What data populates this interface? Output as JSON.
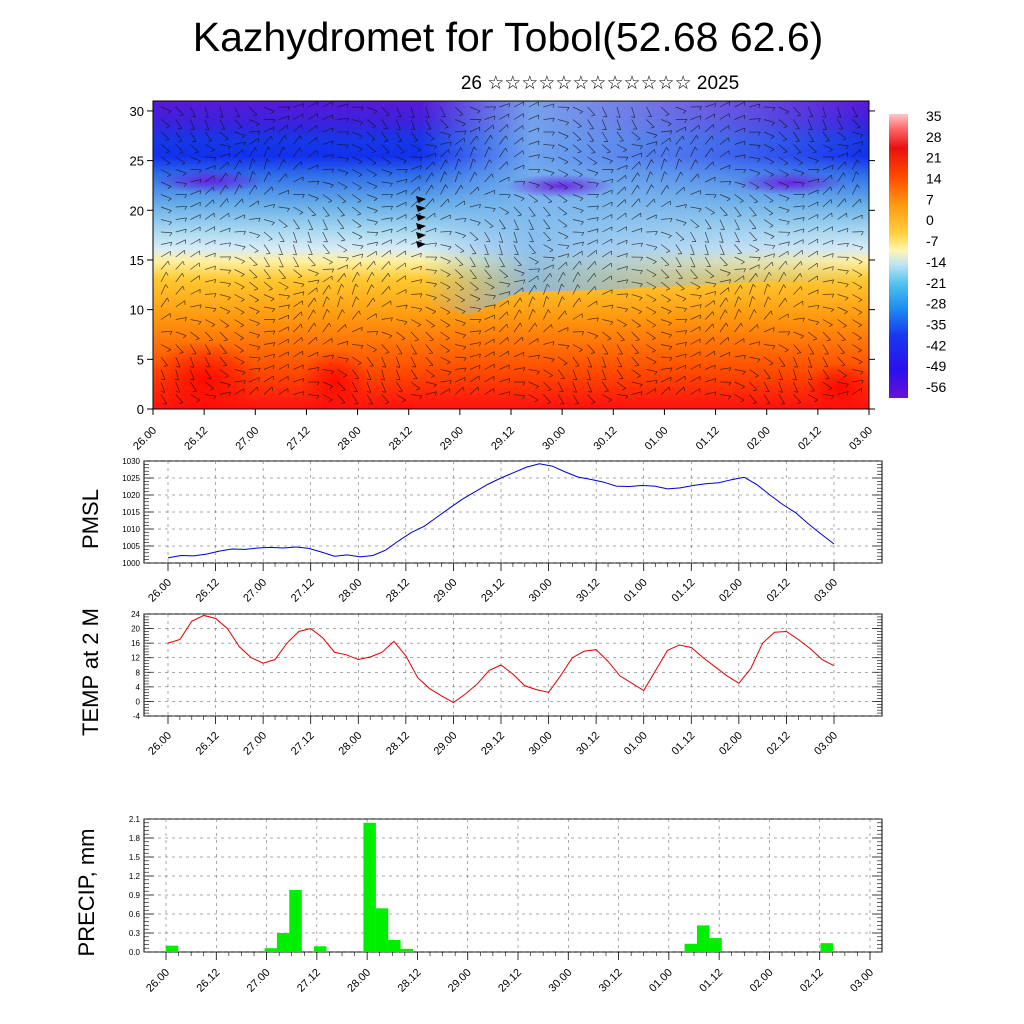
{
  "title": "Kazhydromet for Tobol(52.68 62.6)",
  "subtitle": "26 ☆☆☆☆☆☆☆☆☆☆☆☆ 2025",
  "x_tick_labels": [
    "26.00",
    "26.12",
    "27.00",
    "27.12",
    "28.00",
    "28.12",
    "29.00",
    "29.12",
    "30.00",
    "30.12",
    "01.00",
    "01.12",
    "02.00",
    "02.12",
    "03.00"
  ],
  "colors": {
    "pmsl_line": "#0000cc",
    "temp_line": "#dd0000",
    "precip_bar": "#00ee00"
  },
  "chart_data": [
    {
      "type": "heatmap",
      "title": "Kazhydromet for Tobol(52.68 62.6)",
      "y_ticks": [
        0,
        5,
        10,
        15,
        20,
        25,
        30
      ],
      "ylim": [
        0,
        31
      ],
      "colorbar_labels": [
        "35",
        "28",
        "21",
        "14",
        "7",
        "0",
        "-7",
        "-14",
        "-21",
        "-28",
        "-35",
        "-42",
        "-49",
        "-56"
      ],
      "colorbar_range": [
        -60,
        38
      ],
      "overlay": "wind barbs"
    },
    {
      "type": "line",
      "ylabel": "PMSL",
      "ylim": [
        1000,
        1030
      ],
      "y_ticks": [
        "1000",
        "1005",
        "1010",
        "1015",
        "1020",
        "1025",
        "1030"
      ],
      "values": [
        1001.5,
        1002.2,
        1002.1,
        1002.6,
        1003.5,
        1004.1,
        1004.0,
        1004.4,
        1004.6,
        1004.4,
        1004.7,
        1004.3,
        1003.2,
        1002.0,
        1002.4,
        1001.8,
        1002.2,
        1003.8,
        1006.5,
        1009.0,
        1010.8,
        1013.5,
        1016.2,
        1018.8,
        1021.0,
        1023.2,
        1025.0,
        1026.6,
        1028.2,
        1029.2,
        1028.5,
        1026.8,
        1025.3,
        1024.6,
        1023.8,
        1022.6,
        1022.5,
        1022.8,
        1022.6,
        1021.8,
        1022.1,
        1022.8,
        1023.3,
        1023.6,
        1024.5,
        1025.2,
        1023.0,
        1020.0,
        1017.2,
        1014.8,
        1011.5,
        1008.5,
        1005.6
      ]
    },
    {
      "type": "line",
      "ylabel": "TEMP at 2 M",
      "ylim": [
        -4,
        24
      ],
      "y_ticks": [
        "-4",
        "0",
        "4",
        "8",
        "12",
        "16",
        "20",
        "24"
      ],
      "values": [
        16.0,
        17.0,
        22.0,
        23.6,
        22.8,
        20.0,
        15.0,
        12.0,
        10.5,
        11.5,
        16.0,
        19.2,
        20.0,
        17.5,
        13.5,
        12.8,
        11.5,
        12.2,
        13.5,
        16.5,
        12.5,
        6.5,
        3.5,
        1.5,
        -0.3,
        2.0,
        4.8,
        8.5,
        10.0,
        7.5,
        4.3,
        3.2,
        2.5,
        7.0,
        12.0,
        13.8,
        14.2,
        11.0,
        7.0,
        5.0,
        3.0,
        8.5,
        14.0,
        15.5,
        14.8,
        12.0,
        9.5,
        7.0,
        5.0,
        9.0,
        16.0,
        19.0,
        19.2,
        17.0,
        14.5,
        11.5,
        9.8
      ]
    },
    {
      "type": "bar",
      "ylabel": "PRECIP, mm",
      "ylim": [
        0,
        2.1
      ],
      "y_ticks": [
        "0.0",
        "0.3",
        "0.6",
        "0.9",
        "1.2",
        "1.5",
        "1.8",
        "2.1"
      ],
      "values": [
        0.1,
        0,
        0,
        0,
        0,
        0,
        0,
        0,
        0.06,
        0.3,
        0.98,
        0,
        0.09,
        0,
        0,
        0,
        2.04,
        0.69,
        0.19,
        0.05,
        0,
        0,
        0,
        0,
        0,
        0,
        0,
        0,
        0,
        0,
        0,
        0,
        0,
        0,
        0,
        0,
        0,
        0,
        0,
        0,
        0,
        0,
        0.13,
        0.42,
        0.22,
        0,
        0,
        0,
        0,
        0,
        0,
        0,
        0,
        0.14
      ]
    }
  ]
}
